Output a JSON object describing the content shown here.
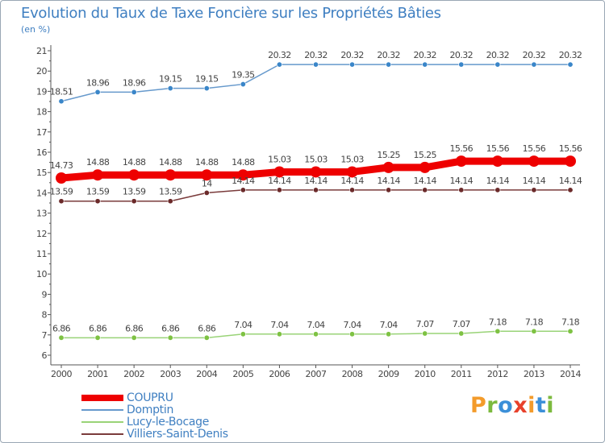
{
  "chart_data": {
    "type": "line",
    "title": "Evolution du Taux de Taxe Foncière sur les Propriétés Bâties",
    "unit_label": "(en %)",
    "x": [
      2000,
      2001,
      2002,
      2003,
      2004,
      2005,
      2006,
      2007,
      2008,
      2009,
      2010,
      2011,
      2012,
      2013,
      2014
    ],
    "ylim": [
      6,
      21
    ],
    "yticks": [
      6,
      7,
      8,
      9,
      10,
      11,
      12,
      13,
      14,
      15,
      16,
      17,
      18,
      19,
      20,
      21
    ],
    "series": [
      {
        "name": "COUPRU",
        "color": "#ee0000",
        "emphasis": true,
        "values": [
          14.73,
          14.88,
          14.88,
          14.88,
          14.88,
          14.88,
          15.03,
          15.03,
          15.03,
          15.25,
          15.25,
          15.56,
          15.56,
          15.56,
          15.56
        ]
      },
      {
        "name": "Domptin",
        "color": "#6699cc",
        "marker": "#3a86c9",
        "values": [
          18.51,
          18.96,
          18.96,
          19.15,
          19.15,
          19.35,
          20.32,
          20.32,
          20.32,
          20.32,
          20.32,
          20.32,
          20.32,
          20.32,
          20.32
        ]
      },
      {
        "name": "Lucy-le-Bocage",
        "color": "#99d377",
        "marker": "#7ec243",
        "values": [
          6.86,
          6.86,
          6.86,
          6.86,
          6.86,
          7.04,
          7.04,
          7.04,
          7.04,
          7.04,
          7.07,
          7.07,
          7.18,
          7.18,
          7.18
        ]
      },
      {
        "name": "Villiers-Saint-Denis",
        "color": "#7a3b3b",
        "marker": "#6b2a2a",
        "values": [
          13.59,
          13.59,
          13.59,
          13.59,
          14,
          14.14,
          14.14,
          14.14,
          14.14,
          14.14,
          14.14,
          14.14,
          14.14,
          14.14,
          14.14
        ]
      }
    ],
    "grid": false,
    "legend_position": "bottom-left"
  },
  "labels": {
    "COUPRU": [
      "14.73",
      "14.88",
      "14.88",
      "14.88",
      "14.88",
      "14.88",
      "15.03",
      "15.03",
      "15.03",
      "15.25",
      "15.25",
      "15.56",
      "15.56",
      "15.56",
      "15.56"
    ],
    "Domptin": [
      "18.51",
      "18.96",
      "18.96",
      "19.15",
      "19.15",
      "19.35",
      "20.32",
      "20.32",
      "20.32",
      "20.32",
      "20.32",
      "20.32",
      "20.32",
      "20.32",
      "20.32"
    ],
    "Lucy-le-Bocage": [
      "6.86",
      "6.86",
      "6.86",
      "6.86",
      "6.86",
      "7.04",
      "7.04",
      "7.04",
      "7.04",
      "7.04",
      "7.07",
      "7.07",
      "7.18",
      "7.18",
      "7.18"
    ],
    "Villiers-Saint-Denis": [
      "13.59",
      "13.59",
      "13.59",
      "13.59",
      "14",
      "14.14",
      "14.14",
      "14.14",
      "14.14",
      "14.14",
      "14.14",
      "14.14",
      "14.14",
      "14.14",
      "14.14"
    ]
  },
  "legend": [
    "COUPRU",
    "Domptin",
    "Lucy-le-Bocage",
    "Villiers-Saint-Denis"
  ],
  "logo": {
    "p": "P",
    "r": "r",
    "o": "o",
    "x": "x",
    "i1": "i",
    "t": "t",
    "i2": "i"
  }
}
